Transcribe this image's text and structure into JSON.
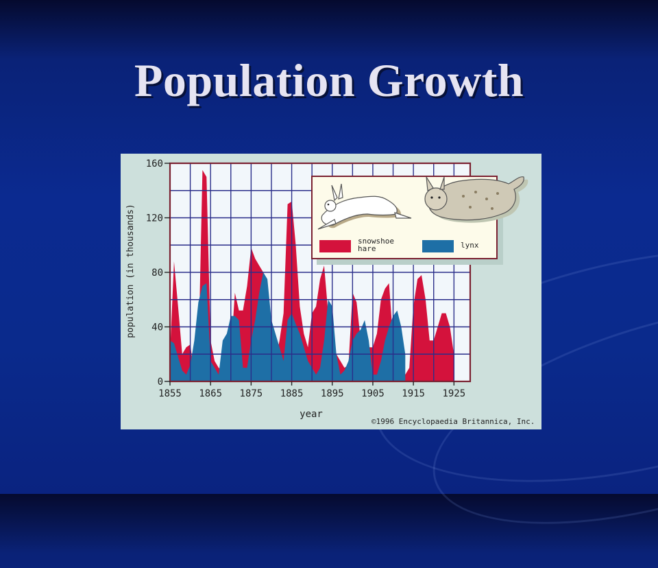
{
  "slide": {
    "title": "Population Growth"
  },
  "figure": {
    "credit": "©1996 Encyclopaedia Britannica, Inc."
  },
  "colors": {
    "hare": "#d4123c",
    "lynx": "#1e6fa6",
    "grid": "#2a2e8a",
    "plot_bg": "#f2f7fb",
    "axis_text": "#222222"
  },
  "chart_data": {
    "type": "area",
    "xlabel": "year",
    "ylabel": "population (in thousands)",
    "xlim": [
      1855,
      1929
    ],
    "ylim": [
      0,
      160
    ],
    "x_ticks": [
      1855,
      1865,
      1875,
      1885,
      1895,
      1905,
      1915,
      1925
    ],
    "y_ticks": [
      0,
      40,
      80,
      120,
      160
    ],
    "grid": true,
    "legend": "top-right",
    "series": [
      {
        "name": "snowshoe hare",
        "color": "#d4123c",
        "points": [
          [
            1855,
            20
          ],
          [
            1856,
            88
          ],
          [
            1857,
            55
          ],
          [
            1858,
            20
          ],
          [
            1859,
            25
          ],
          [
            1860,
            27
          ],
          [
            1861,
            5
          ],
          [
            1862,
            15
          ],
          [
            1863,
            155
          ],
          [
            1864,
            150
          ],
          [
            1865,
            30
          ],
          [
            1866,
            15
          ],
          [
            1867,
            10
          ],
          [
            1868,
            8
          ],
          [
            1869,
            10
          ],
          [
            1870,
            20
          ],
          [
            1871,
            65
          ],
          [
            1872,
            52
          ],
          [
            1873,
            52
          ],
          [
            1874,
            70
          ],
          [
            1875,
            98
          ],
          [
            1876,
            90
          ],
          [
            1877,
            85
          ],
          [
            1878,
            80
          ],
          [
            1879,
            65
          ],
          [
            1880,
            15
          ],
          [
            1881,
            15
          ],
          [
            1882,
            30
          ],
          [
            1883,
            50
          ],
          [
            1884,
            130
          ],
          [
            1885,
            132
          ],
          [
            1886,
            100
          ],
          [
            1887,
            55
          ],
          [
            1888,
            35
          ],
          [
            1889,
            25
          ],
          [
            1890,
            50
          ],
          [
            1891,
            55
          ],
          [
            1892,
            75
          ],
          [
            1893,
            85
          ],
          [
            1894,
            50
          ],
          [
            1895,
            30
          ],
          [
            1896,
            20
          ],
          [
            1897,
            15
          ],
          [
            1898,
            10
          ],
          [
            1899,
            12
          ],
          [
            1900,
            65
          ],
          [
            1901,
            58
          ],
          [
            1902,
            30
          ],
          [
            1903,
            5
          ],
          [
            1904,
            25
          ],
          [
            1905,
            25
          ],
          [
            1906,
            35
          ],
          [
            1907,
            60
          ],
          [
            1908,
            68
          ],
          [
            1909,
            72
          ],
          [
            1910,
            30
          ],
          [
            1911,
            15
          ],
          [
            1912,
            10
          ],
          [
            1913,
            5
          ],
          [
            1914,
            10
          ],
          [
            1915,
            55
          ],
          [
            1916,
            75
          ],
          [
            1917,
            78
          ],
          [
            1918,
            60
          ],
          [
            1919,
            30
          ],
          [
            1920,
            30
          ],
          [
            1921,
            40
          ],
          [
            1922,
            50
          ],
          [
            1923,
            50
          ],
          [
            1924,
            40
          ],
          [
            1925,
            20
          ]
        ]
      },
      {
        "name": "lynx",
        "color": "#1e6fa6",
        "points": [
          [
            1855,
            30
          ],
          [
            1856,
            28
          ],
          [
            1857,
            18
          ],
          [
            1858,
            8
          ],
          [
            1859,
            5
          ],
          [
            1860,
            12
          ],
          [
            1861,
            30
          ],
          [
            1862,
            58
          ],
          [
            1863,
            70
          ],
          [
            1864,
            72
          ],
          [
            1865,
            15
          ],
          [
            1866,
            10
          ],
          [
            1867,
            5
          ],
          [
            1868,
            30
          ],
          [
            1869,
            35
          ],
          [
            1870,
            48
          ],
          [
            1871,
            48
          ],
          [
            1872,
            45
          ],
          [
            1873,
            10
          ],
          [
            1874,
            10
          ],
          [
            1875,
            30
          ],
          [
            1876,
            45
          ],
          [
            1877,
            65
          ],
          [
            1878,
            80
          ],
          [
            1879,
            75
          ],
          [
            1880,
            45
          ],
          [
            1881,
            35
          ],
          [
            1882,
            25
          ],
          [
            1883,
            15
          ],
          [
            1884,
            45
          ],
          [
            1885,
            50
          ],
          [
            1886,
            42
          ],
          [
            1887,
            35
          ],
          [
            1888,
            25
          ],
          [
            1889,
            15
          ],
          [
            1890,
            10
          ],
          [
            1891,
            5
          ],
          [
            1892,
            10
          ],
          [
            1893,
            30
          ],
          [
            1894,
            60
          ],
          [
            1895,
            55
          ],
          [
            1896,
            20
          ],
          [
            1897,
            5
          ],
          [
            1898,
            8
          ],
          [
            1899,
            15
          ],
          [
            1900,
            30
          ],
          [
            1901,
            35
          ],
          [
            1902,
            38
          ],
          [
            1903,
            45
          ],
          [
            1904,
            30
          ],
          [
            1905,
            5
          ],
          [
            1906,
            5
          ],
          [
            1907,
            15
          ],
          [
            1908,
            30
          ],
          [
            1909,
            40
          ],
          [
            1910,
            48
          ],
          [
            1911,
            52
          ],
          [
            1912,
            40
          ],
          [
            1913,
            20
          ]
        ]
      }
    ]
  }
}
